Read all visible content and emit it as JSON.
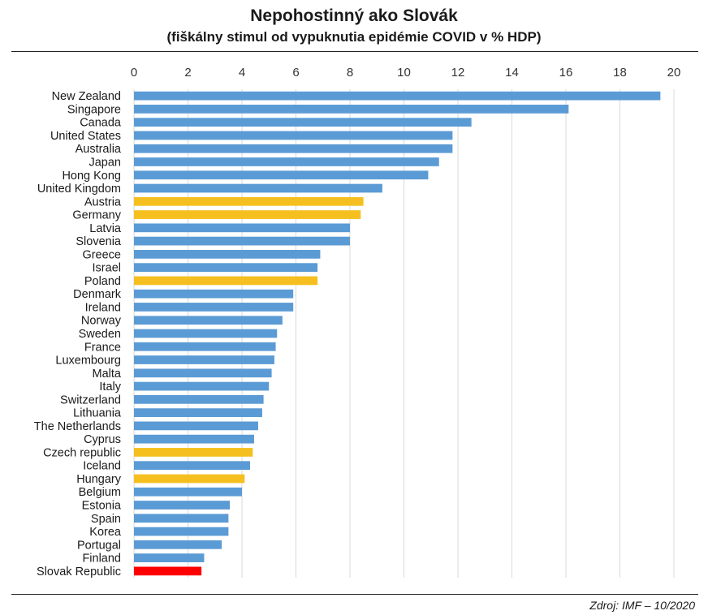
{
  "chart_data": {
    "type": "bar",
    "orientation": "horizontal",
    "title": "Nepohostinný ako Slovák",
    "subtitle": "(fiškálny stimul od vypuknutia epidémie COVID v % HDP)",
    "xlim": [
      0,
      20
    ],
    "x_ticks": [
      0,
      2,
      4,
      6,
      8,
      10,
      12,
      14,
      16,
      18,
      20
    ],
    "grid": "vertical",
    "categories": [
      "New Zealand",
      "Singapore",
      "Canada",
      "United States",
      "Australia",
      "Japan",
      "Hong Kong",
      "United Kingdom",
      "Austria",
      "Germany",
      "Latvia",
      "Slovenia",
      "Greece",
      "Israel",
      "Poland",
      "Denmark",
      "Ireland",
      "Norway",
      "Sweden",
      "France",
      "Luxembourg",
      "Malta",
      "Italy",
      "Switzerland",
      "Lithuania",
      "The Netherlands",
      "Cyprus",
      "Czech republic",
      "Iceland",
      "Hungary",
      "Belgium",
      "Estonia",
      "Spain",
      "Korea",
      "Portugal",
      "Finland",
      "Slovak Republic"
    ],
    "values": [
      19.5,
      16.1,
      12.5,
      11.8,
      11.8,
      11.3,
      10.9,
      9.2,
      8.5,
      8.4,
      8.0,
      8.0,
      6.9,
      6.8,
      6.8,
      5.9,
      5.9,
      5.5,
      5.3,
      5.25,
      5.2,
      5.1,
      5.0,
      4.8,
      4.75,
      4.6,
      4.45,
      4.4,
      4.3,
      4.1,
      4.0,
      3.55,
      3.5,
      3.5,
      3.25,
      2.6,
      2.5
    ],
    "colors": [
      "#5b9bd5",
      "#5b9bd5",
      "#5b9bd5",
      "#5b9bd5",
      "#5b9bd5",
      "#5b9bd5",
      "#5b9bd5",
      "#5b9bd5",
      "#f5c01f",
      "#f5c01f",
      "#5b9bd5",
      "#5b9bd5",
      "#5b9bd5",
      "#5b9bd5",
      "#f5c01f",
      "#5b9bd5",
      "#5b9bd5",
      "#5b9bd5",
      "#5b9bd5",
      "#5b9bd5",
      "#5b9bd5",
      "#5b9bd5",
      "#5b9bd5",
      "#5b9bd5",
      "#5b9bd5",
      "#5b9bd5",
      "#5b9bd5",
      "#f5c01f",
      "#5b9bd5",
      "#f5c01f",
      "#5b9bd5",
      "#5b9bd5",
      "#5b9bd5",
      "#5b9bd5",
      "#5b9bd5",
      "#5b9bd5",
      "#ff0000"
    ],
    "source": "Zdroj: IMF – 10/2020"
  }
}
